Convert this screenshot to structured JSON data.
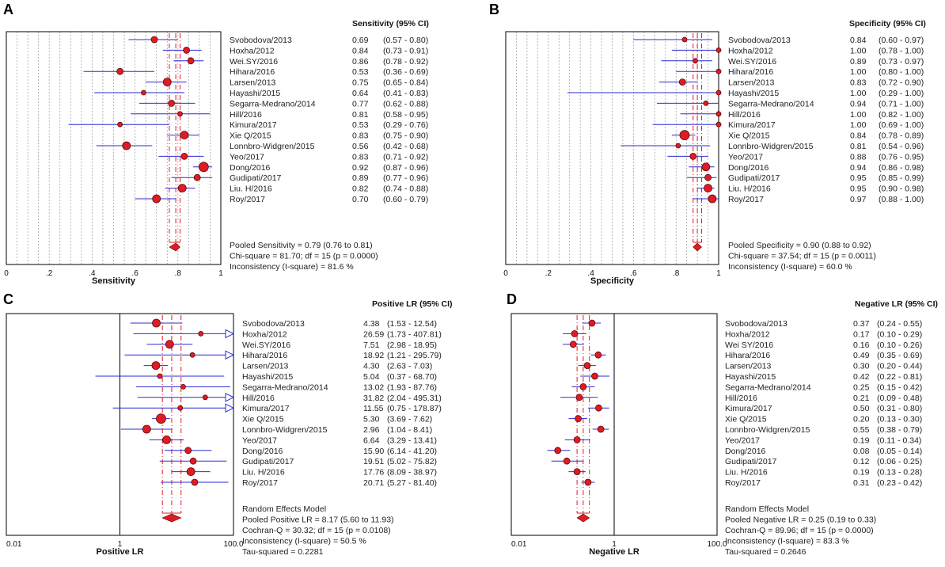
{
  "studies": [
    "Svobodova/2013",
    "Hoxha/2012",
    "Wei.SY/2016",
    "Hihara/2016",
    "Larsen/2013",
    "Hayashi/2015",
    "Segarra-Medrano/2014",
    "Hill/2016",
    "Kimura/2017",
    "Xie Q/2015",
    "Lonnbro-Widgren/2015",
    "Yeo/2017",
    "Dong/2016",
    "Gudipati/2017",
    "Liu. H/2016",
    "Roy/2017"
  ],
  "chart_data": [
    {
      "panel": "A",
      "type": "forest",
      "scale": "linear",
      "header": "Sensitivity (95% CI)",
      "xlabel": "Sensitivity",
      "xlim": [
        0,
        1
      ],
      "ticks": [
        0,
        0.2,
        0.4,
        0.6,
        0.8,
        1
      ],
      "tick_labels": [
        "0",
        ".2",
        ".4",
        ".6",
        ".8",
        "1"
      ],
      "grid": true,
      "studies": [
        "Svobodova/2013",
        "Hoxha/2012",
        "Wei.SY/2016",
        "Hihara/2016",
        "Larsen/2013",
        "Hayashi/2015",
        "Segarra-Medrano/2014",
        "Hill/2016",
        "Kimura/2017",
        "Xie Q/2015",
        "Lonnbro-Widgren/2015",
        "Yeo/2017",
        "Dong/2016",
        "Gudipati/2017",
        "Liu. H/2016",
        "Roy/2017"
      ],
      "values": [
        0.69,
        0.84,
        0.86,
        0.53,
        0.75,
        0.64,
        0.77,
        0.81,
        0.53,
        0.83,
        0.56,
        0.83,
        0.92,
        0.89,
        0.82,
        0.7
      ],
      "lower": [
        0.57,
        0.73,
        0.78,
        0.36,
        0.65,
        0.41,
        0.62,
        0.58,
        0.29,
        0.75,
        0.42,
        0.71,
        0.87,
        0.77,
        0.74,
        0.6
      ],
      "upper": [
        0.8,
        0.91,
        0.92,
        0.69,
        0.84,
        0.83,
        0.88,
        0.95,
        0.76,
        0.9,
        0.68,
        0.92,
        0.96,
        0.96,
        0.88,
        0.79
      ],
      "value_text": [
        "0.69",
        "0.84",
        "0.86",
        "0.53",
        "0.75",
        "0.64",
        "0.77",
        "0.81",
        "0.53",
        "0.83",
        "0.56",
        "0.83",
        "0.92",
        "0.89",
        "0.82",
        "0.70"
      ],
      "ci_text": [
        "(0.57 - 0.80)",
        "(0.73 - 0.91)",
        "(0.78 - 0.92)",
        "(0.36 - 0.69)",
        "(0.65 - 0.84)",
        "(0.41 - 0.83)",
        "(0.62 - 0.88)",
        "(0.58 - 0.95)",
        "(0.29 - 0.76)",
        "(0.75 - 0.90)",
        "(0.42 - 0.68)",
        "(0.71 - 0.92)",
        "(0.87 - 0.96)",
        "(0.77 - 0.96)",
        "(0.74 - 0.88)",
        "(0.60 - 0.79)"
      ],
      "weights": [
        2,
        2,
        2,
        2,
        3,
        1,
        2,
        1,
        1,
        3,
        3,
        2,
        4,
        2,
        3,
        3
      ],
      "pooled": {
        "value": 0.79,
        "lower": 0.76,
        "upper": 0.81
      },
      "summary": [
        "Pooled Sensitivity = 0.79 (0.76 to 0.81)",
        "Chi-square = 81.70; df =  15 (p = 0.0000)",
        "Inconsistency (I-square) = 81.6 %"
      ],
      "reference_line": null
    },
    {
      "panel": "B",
      "type": "forest",
      "scale": "linear",
      "header": "Specificity (95% CI)",
      "xlabel": "Specificity",
      "xlim": [
        0,
        1
      ],
      "ticks": [
        0,
        0.2,
        0.4,
        0.6,
        0.8,
        1
      ],
      "tick_labels": [
        "0",
        ".2",
        ".4",
        ".6",
        ".8",
        "1"
      ],
      "grid": true,
      "studies": [
        "Svobodova/2013",
        "Hoxha/2012",
        "Wei.SY/2016",
        "Hihara/2016",
        "Larsen/2013",
        "Hayashi/2015",
        "Segarra-Medrano/2014",
        "Hill/2016",
        "Kimura/2017",
        "Xie Q/2015",
        "Lonnbro-Widgren/2015",
        "Yeo/2017",
        "Dong/2016",
        "Gudipati/2017",
        "Liu. H/2016",
        "Roy/2017"
      ],
      "values": [
        0.84,
        1.0,
        0.89,
        1.0,
        0.83,
        1.0,
        0.94,
        1.0,
        1.0,
        0.84,
        0.81,
        0.88,
        0.94,
        0.95,
        0.95,
        0.97
      ],
      "lower": [
        0.6,
        0.78,
        0.73,
        0.8,
        0.72,
        0.29,
        0.71,
        0.82,
        0.69,
        0.78,
        0.54,
        0.76,
        0.86,
        0.85,
        0.9,
        0.88
      ],
      "upper": [
        0.97,
        1.0,
        0.97,
        1.0,
        0.9,
        1.0,
        1.0,
        1.0,
        1.0,
        0.89,
        0.96,
        0.95,
        0.98,
        0.99,
        0.98,
        1.0
      ],
      "value_text": [
        "0.84",
        "1.00",
        "0.89",
        "1.00",
        "0.83",
        "1.00",
        "0.94",
        "1.00",
        "1.00",
        "0.84",
        "0.81",
        "0.88",
        "0.94",
        "0.95",
        "0.95",
        "0.97"
      ],
      "ci_text": [
        "(0.60 - 0.97)",
        "(0.78 - 1.00)",
        "(0.73 - 0.97)",
        "(0.80 - 1.00)",
        "(0.72 - 0.90)",
        "(0.29 - 1.00)",
        "(0.71 - 1.00)",
        "(0.82 - 1.00)",
        "(0.69 - 1.00)",
        "(0.78 - 0.89)",
        "(0.54 - 0.96)",
        "(0.76 - 0.95)",
        "(0.86 - 0.98)",
        "(0.85 - 0.99)",
        "(0.90 - 0.98)",
        "(0.88 - 1.00)"
      ],
      "weights": [
        1,
        1,
        1,
        1,
        2,
        1,
        1,
        1,
        1,
        4,
        1,
        2,
        3,
        2,
        3,
        3
      ],
      "pooled": {
        "value": 0.9,
        "lower": 0.88,
        "upper": 0.92
      },
      "summary": [
        "Pooled Specificity = 0.90 (0.88 to 0.92)",
        "Chi-square = 37.54; df =  15 (p = 0.0011)",
        "Inconsistency (I-square) = 60.0 %"
      ],
      "reference_line": null
    },
    {
      "panel": "C",
      "type": "forest",
      "scale": "log",
      "header": "Positive LR (95% CI)",
      "xlabel": "Positive LR",
      "xlim": [
        0.01,
        100
      ],
      "ticks": [
        0.01,
        1,
        100
      ],
      "tick_labels": [
        "0.01",
        "1",
        "100.0"
      ],
      "grid": false,
      "studies": [
        "Svobodova/2013",
        "Hoxha/2012",
        "Wei.SY/2016",
        "Hihara/2016",
        "Larsen/2013",
        "Hayashi/2015",
        "Segarra-Medrano/2014",
        "Hill/2016",
        "Kimura/2017",
        "Xie Q/2015",
        "Lonnbro-Widgren/2015",
        "Yeo/2017",
        "Dong/2016",
        "Gudipati/2017",
        "Liu. H/2016",
        "Roy/2017"
      ],
      "values": [
        4.38,
        26.59,
        7.51,
        18.92,
        4.3,
        5.04,
        13.02,
        31.82,
        11.55,
        5.3,
        2.96,
        6.64,
        15.9,
        19.51,
        17.76,
        20.71
      ],
      "lower": [
        1.53,
        1.73,
        2.98,
        1.21,
        2.63,
        0.37,
        1.93,
        2.04,
        0.75,
        3.69,
        1.04,
        3.29,
        6.14,
        5.02,
        8.09,
        5.27
      ],
      "upper": [
        12.54,
        407.81,
        18.95,
        295.79,
        7.03,
        68.7,
        87.76,
        495.31,
        178.87,
        7.62,
        8.41,
        13.41,
        41.2,
        75.82,
        38.97,
        81.4
      ],
      "value_text": [
        "4.38",
        "26.59",
        "7.51",
        "18.92",
        "4.30",
        "5.04",
        "13.02",
        "31.82",
        "11.55",
        "5.30",
        "2.96",
        "6.64",
        "15.90",
        "19.51",
        "17.76",
        "20.71"
      ],
      "ci_text": [
        "(1.53 - 12.54)",
        "(1.73 - 407.81)",
        "(2.98 - 18.95)",
        "(1.21 - 295.79)",
        "(2.63 - 7.03)",
        "(0.37 - 68.70)",
        "(1.93 - 87.76)",
        "(2.04 - 495.31)",
        "(0.75 - 178.87)",
        "(3.69 - 7.62)",
        "(1.04 - 8.41)",
        "(3.29 - 13.41)",
        "(6.14 - 41.20)",
        "(5.02 - 75.82)",
        "(8.09 - 38.97)",
        "(5.27 - 81.40)"
      ],
      "weights": [
        3,
        1,
        3,
        1,
        3,
        1,
        1,
        1,
        1,
        4,
        3,
        3,
        2,
        2,
        3,
        2
      ],
      "pooled": {
        "value": 8.17,
        "lower": 5.6,
        "upper": 11.93
      },
      "summary": [
        "Random Effects Model",
        "Pooled Positive LR = 8.17 (5.60 to 11.93)",
        "Cochran-Q = 30.32; df =  15 (p = 0.0108)",
        "Inconsistency (I-square) = 50.5 %",
        "Tau-squared = 0.2281"
      ],
      "reference_line": 1
    },
    {
      "panel": "D",
      "type": "forest",
      "scale": "log",
      "header": "Negative LR (95% CI)",
      "xlabel": "Negative LR",
      "xlim": [
        0.01,
        100
      ],
      "ticks": [
        0.01,
        1,
        100
      ],
      "tick_labels": [
        "0.01",
        "1",
        "100.0"
      ],
      "grid": false,
      "studies": [
        "Svobodova/2013",
        "Hoxha/2012",
        "Wei SY/2016",
        "Hihara/2016",
        "Larsen/2013",
        "Hayashi/2015",
        "Segarra-Medrano/2014",
        "Hill/2016",
        "Kimura/2017",
        "Xie Q/2015",
        "Lonnbro-Widgren/2015",
        "Yeo/2017",
        "Dong/2016",
        "Gudipati/2017",
        "Liu. H/2016",
        "Roy/2017"
      ],
      "values": [
        0.37,
        0.17,
        0.16,
        0.49,
        0.3,
        0.42,
        0.25,
        0.21,
        0.5,
        0.2,
        0.55,
        0.19,
        0.08,
        0.12,
        0.19,
        0.31
      ],
      "lower": [
        0.24,
        0.1,
        0.1,
        0.35,
        0.2,
        0.22,
        0.15,
        0.09,
        0.31,
        0.13,
        0.38,
        0.11,
        0.05,
        0.06,
        0.13,
        0.23
      ],
      "upper": [
        0.55,
        0.29,
        0.26,
        0.69,
        0.44,
        0.81,
        0.42,
        0.48,
        0.8,
        0.3,
        0.79,
        0.34,
        0.14,
        0.25,
        0.28,
        0.42
      ],
      "value_text": [
        "0.37",
        "0.17",
        "0.16",
        "0.49",
        "0.30",
        "0.42",
        "0.25",
        "0.21",
        "0.50",
        "0.20",
        "0.55",
        "0.19",
        "0.08",
        "0.12",
        "0.19",
        "0.31"
      ],
      "ci_text": [
        "(0.24 - 0.55)",
        "(0.10 - 0.29)",
        "(0.10 - 0.26)",
        "(0.35 - 0.69)",
        "(0.20 - 0.44)",
        "(0.22 - 0.81)",
        "(0.15 - 0.42)",
        "(0.09 - 0.48)",
        "(0.31 - 0.80)",
        "(0.13 - 0.30)",
        "(0.38 - 0.79)",
        "(0.11 - 0.34)",
        "(0.05 - 0.14)",
        "(0.06 - 0.25)",
        "(0.13 - 0.28)",
        "(0.23 - 0.42)"
      ],
      "weights": [
        2,
        2,
        2,
        2,
        2,
        2,
        2,
        2,
        2,
        2,
        2,
        2,
        2,
        2,
        2,
        2
      ],
      "pooled": {
        "value": 0.25,
        "lower": 0.19,
        "upper": 0.33
      },
      "summary": [
        "Random Effects Model",
        "Pooled Negative LR = 0.25 (0.19 to 0.33)",
        "Cochran-Q = 89.96; df =  15 (p = 0.0000)",
        "Inconsistency (I-square) = 83.3 %",
        "Tau-squared = 0.2646"
      ],
      "reference_line": 1
    }
  ],
  "colors": {
    "marker_fill": "#e01b24",
    "marker_stroke": "#5a0a0a",
    "ci_line": "#2b2bd6",
    "pooled_line": "#e01b24",
    "frame": "#000000",
    "grid": "#9a9a9a"
  }
}
